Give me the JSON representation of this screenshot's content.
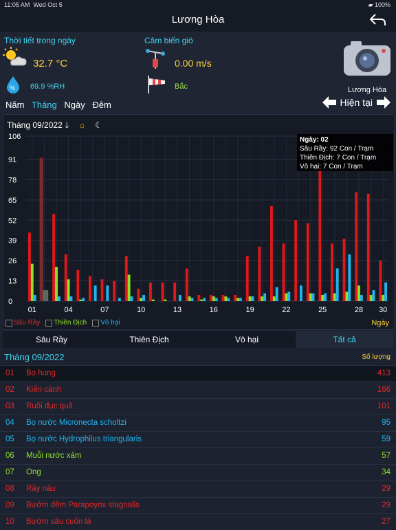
{
  "status": {
    "time": "11:05 AM",
    "date": "Wed Oct 5",
    "battery": "100%"
  },
  "nav": {
    "title": "Lương Hòa"
  },
  "weather": {
    "day_label": "Thời tiết trong ngày",
    "temp": "32.7 °C",
    "humidity": "69.9 %RH",
    "wind_label": "Cảm biến gió",
    "wind_speed": "0.00 m/s",
    "wind_dir": "Bắc"
  },
  "station": "Lương Hòa",
  "periods": [
    {
      "label": "Năm",
      "active": false
    },
    {
      "label": "Tháng",
      "active": true
    },
    {
      "label": "Ngày",
      "active": false
    },
    {
      "label": "Đêm",
      "active": false
    }
  ],
  "now_label": "Hiện tại",
  "chart_month": "Tháng 09/2022",
  "tooltip": {
    "title": "Ngày: 02",
    "l1": "Sâu Rầy: 92 Con / Trạm",
    "l2": "Thiên Địch: 7 Con / Trạm",
    "l3": "Vô hại: 7 Con / Trạm"
  },
  "legend": {
    "s1": "Sâu Rầy",
    "s2": "Thiên Địch",
    "s3": "Vô hại",
    "xunit": "Ngày"
  },
  "chart_data": {
    "type": "bar",
    "title": "Tháng 09/2022",
    "xlabel": "Ngày",
    "ylabel": "",
    "ylim": [
      0,
      106
    ],
    "yticks": [
      0,
      13,
      26,
      39,
      52,
      65,
      78,
      91,
      106
    ],
    "xticks": [
      "01",
      "04",
      "07",
      "10",
      "13",
      "16",
      "19",
      "22",
      "25",
      "28",
      "30"
    ],
    "days": [
      1,
      2,
      3,
      4,
      5,
      6,
      7,
      8,
      9,
      10,
      11,
      12,
      13,
      14,
      15,
      16,
      17,
      18,
      19,
      20,
      21,
      22,
      23,
      24,
      25,
      26,
      27,
      28,
      29,
      30
    ],
    "series": [
      {
        "name": "Sâu Rầy",
        "color": "#e01818",
        "values": [
          44,
          92,
          56,
          30,
          20,
          16,
          14,
          13,
          29,
          8,
          12,
          12,
          12,
          21,
          4,
          4,
          4,
          4,
          29,
          35,
          61,
          37,
          52,
          50,
          85,
          37,
          40,
          70,
          69,
          26
        ]
      },
      {
        "name": "Thiên Địch",
        "color": "#8ee02a",
        "values": [
          24,
          7,
          22,
          14,
          1,
          0,
          0,
          0,
          17,
          2,
          1,
          1,
          0,
          3,
          1,
          3,
          3,
          2,
          3,
          3,
          3,
          5,
          0,
          5,
          4,
          5,
          6,
          10,
          4,
          4
        ]
      },
      {
        "name": "Vô hại",
        "color": "#22b4f0",
        "values": [
          4,
          7,
          3,
          3,
          2,
          10,
          10,
          2,
          3,
          4,
          0,
          0,
          4,
          2,
          2,
          2,
          2,
          2,
          3,
          5,
          9,
          6,
          10,
          5,
          5,
          21,
          30,
          4,
          7,
          12
        ]
      }
    ],
    "highlight_day": 2,
    "grid": true
  },
  "tabs": [
    {
      "label": "Sâu Rầy",
      "selected": false
    },
    {
      "label": "Thiên Địch",
      "selected": false
    },
    {
      "label": "Vô hại",
      "selected": false
    },
    {
      "label": "Tất cả",
      "selected": true
    }
  ],
  "list": {
    "month": "Tháng 09/2022",
    "count_label": "Số lượng",
    "rows": [
      {
        "n": "01",
        "name": "Bọ hung",
        "count": "413",
        "color": "#e02828"
      },
      {
        "n": "02",
        "name": "Kiến cánh",
        "count": "166",
        "color": "#e02828"
      },
      {
        "n": "03",
        "name": "Ruồi đục quả",
        "count": "101",
        "color": "#e02828"
      },
      {
        "n": "04",
        "name": "Bọ nước Micronecta scholtzi",
        "count": "95",
        "color": "#22b4f0"
      },
      {
        "n": "05",
        "name": "Bọ nước Hydrophilus triangularis",
        "count": "59",
        "color": "#22b4f0"
      },
      {
        "n": "06",
        "name": "Muỗi nước xám",
        "count": "57",
        "color": "#8ee02a"
      },
      {
        "n": "07",
        "name": "Ong",
        "count": "34",
        "color": "#8ee02a"
      },
      {
        "n": "08",
        "name": "Rầy nâu",
        "count": "29",
        "color": "#e02828"
      },
      {
        "n": "09",
        "name": "Bướm đêm Parapoynx stagnalis",
        "count": "29",
        "color": "#e02828"
      },
      {
        "n": "10",
        "name": "Bướm sâu cuốn lá",
        "count": "27",
        "color": "#e02828"
      }
    ]
  }
}
